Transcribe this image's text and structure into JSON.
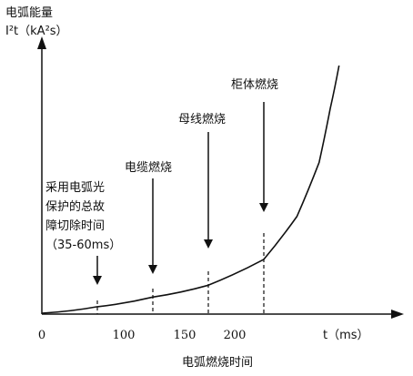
{
  "chart_data": {
    "type": "line",
    "ylabel_line1": "电弧能量",
    "ylabel_line2": "I²t（kA²s）",
    "xlabel": "t（ms）",
    "caption": "电弧燃烧时间",
    "x_ticks": [
      "0",
      "100",
      "150",
      "200"
    ],
    "x_tick_values": [
      0,
      100,
      150,
      200
    ],
    "xlim": [
      0,
      320
    ],
    "series": [
      {
        "x": [
          0,
          50,
          100,
          150,
          200,
          230,
          250,
          260,
          268
        ],
        "y": [
          0,
          0.06,
          0.15,
          0.26,
          0.5,
          0.9,
          1.4,
          1.9,
          2.3
        ]
      }
    ],
    "markers": [
      {
        "x": 50,
        "label_lines": [
          "采用电弧光",
          "保护的总故",
          "障切除时间",
          "（35-60ms）"
        ]
      },
      {
        "x": 100,
        "label_lines": [
          "电缆燃烧"
        ]
      },
      {
        "x": 150,
        "label_lines": [
          "母线燃烧"
        ]
      },
      {
        "x": 200,
        "label_lines": [
          "柜体燃烧"
        ]
      }
    ]
  }
}
